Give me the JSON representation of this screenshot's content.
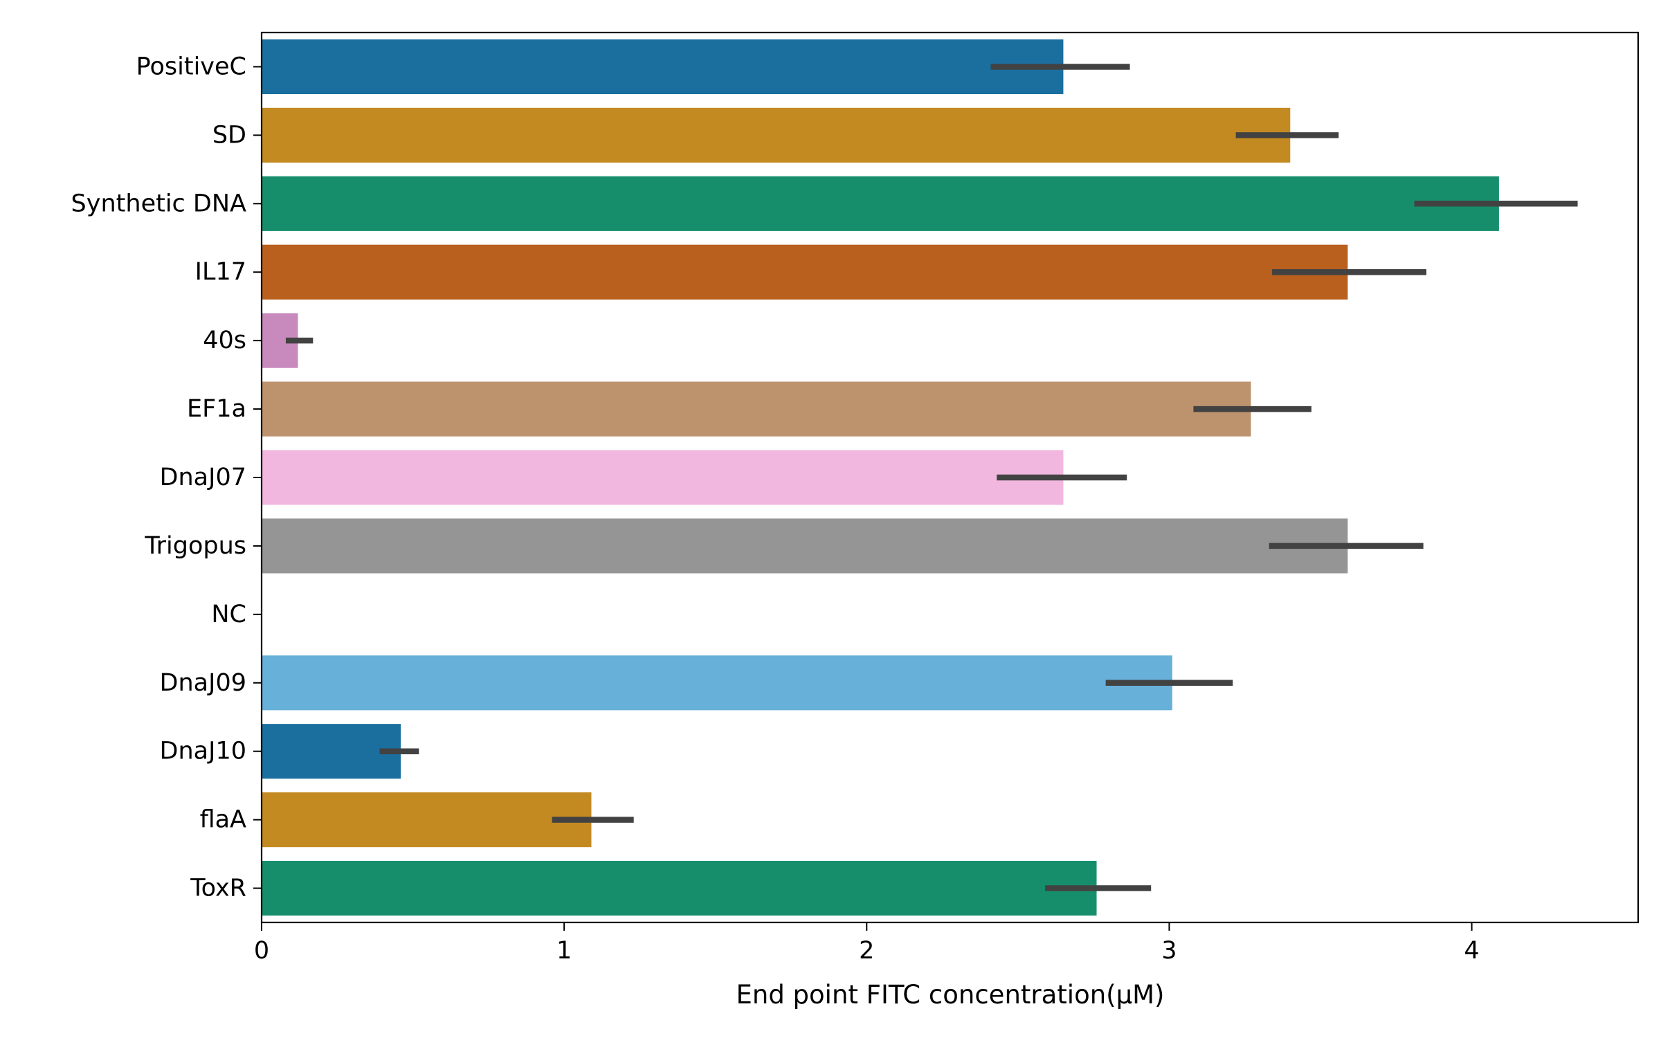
{
  "chart_data": {
    "type": "bar",
    "orientation": "horizontal",
    "xlabel": "End point FITC concentration(μM)",
    "ylabel": "",
    "title": "",
    "xlim": [
      0,
      4.55
    ],
    "x_ticks": [
      0,
      1,
      2,
      3,
      4
    ],
    "grid": false,
    "categories": [
      "PositiveC",
      "SD",
      "Synthetic DNA",
      "IL17",
      "40s",
      "EF1a",
      "DnaJ07",
      "Trigopus",
      "NC",
      "DnaJ09",
      "DnaJ10",
      "flaA",
      "ToxR"
    ],
    "values": [
      2.65,
      3.4,
      4.09,
      3.59,
      0.12,
      3.27,
      2.65,
      3.59,
      0.0,
      3.01,
      0.46,
      1.09,
      2.76
    ],
    "error_low": [
      2.41,
      3.22,
      3.81,
      3.34,
      0.08,
      3.08,
      2.43,
      3.33,
      null,
      2.79,
      0.39,
      0.96,
      2.59
    ],
    "error_high": [
      2.87,
      3.56,
      4.35,
      3.85,
      0.17,
      3.47,
      2.86,
      3.84,
      null,
      3.21,
      0.52,
      1.23,
      2.94
    ],
    "colors": [
      "#1a6f9f",
      "#c48a22",
      "#168e6b",
      "#b9601e",
      "#c889bd",
      "#bd936e",
      "#f1b7de",
      "#959595",
      "#ffffff",
      "#66b0d9",
      "#1a6f9f",
      "#c48a22",
      "#168e6b"
    ]
  }
}
